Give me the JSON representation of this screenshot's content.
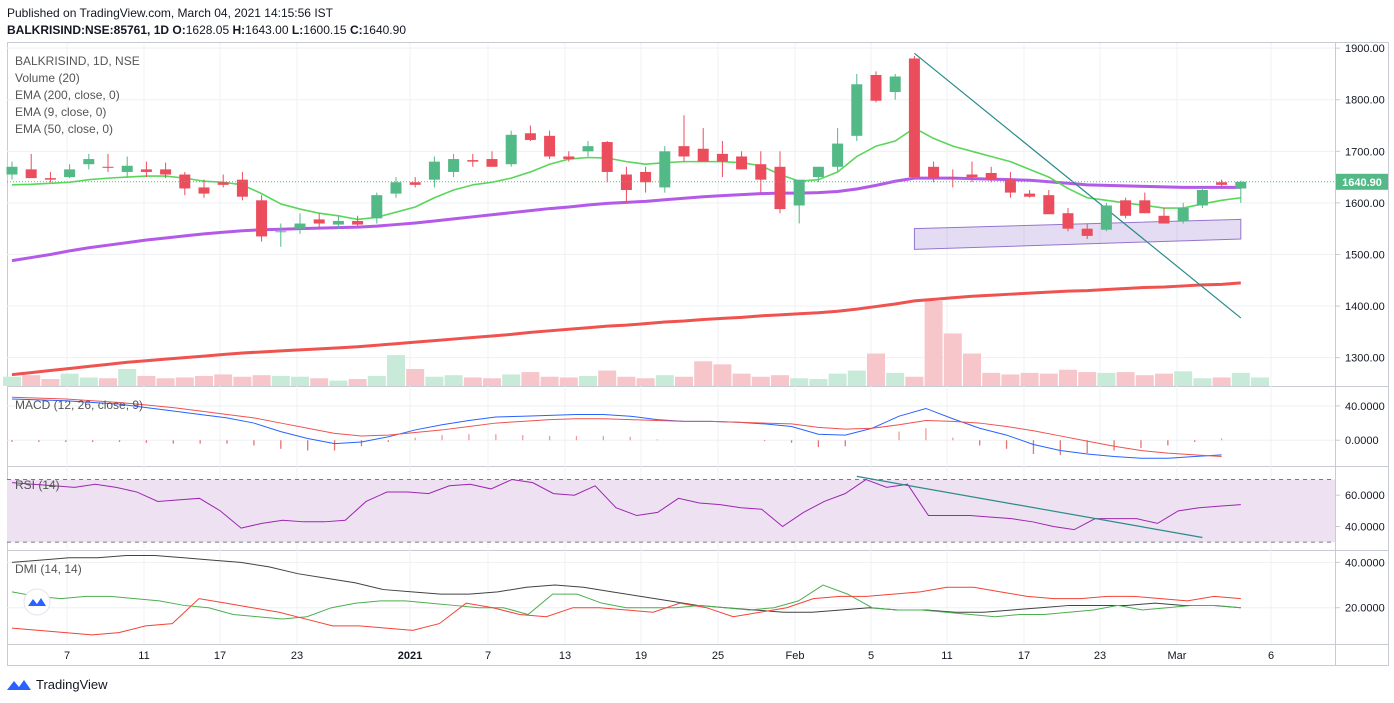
{
  "header": {
    "published": "Published on TradingView.com, March 04, 2021 14:15:56 IST",
    "symbol": "BALKRISIND:NSE:85761, 1D",
    "o_label": "O:",
    "o": "1628.05",
    "h_label": "H:",
    "h": "1643.00",
    "l_label": "L:",
    "l": "1600.15",
    "c_label": "C:",
    "c": "1640.90"
  },
  "legend": [
    "BALKRISIND, 1D, NSE",
    "Volume (20)",
    "EMA (200, close, 0)",
    "EMA (9, close, 0)",
    "EMA (50, close, 0)"
  ],
  "panes": {
    "macd": "MACD (12, 26, close, 9)",
    "rsi": "RSI (14)",
    "dmi": "DMI (14, 14)"
  },
  "footer": {
    "brand": "TradingView"
  },
  "colors": {
    "up": "#53b987",
    "down": "#eb4d5c",
    "ema9": "#5ad65a",
    "ema50": "#b45ae8",
    "ema200": "#ef5350",
    "trend": "#2a8b8b",
    "channel": "#9575cd"
  },
  "chart_data": {
    "type": "candlestick",
    "x_ticks": [
      "7",
      "11",
      "17",
      "23",
      "2021",
      "7",
      "13",
      "19",
      "25",
      "Feb",
      "5",
      "11",
      "17",
      "23",
      "Mar",
      "6"
    ],
    "price": {
      "ylim": [
        1245,
        1910
      ],
      "ticks": [
        "1900.00",
        "1800.00",
        "1700.00",
        "1600.00",
        "1500.00",
        "1400.00",
        "1300.00"
      ],
      "last_price": "1640.90",
      "ohlc": [
        [
          1655,
          1680,
          1645,
          1670
        ],
        [
          1665,
          1695,
          1650,
          1648
        ],
        [
          1648,
          1660,
          1640,
          1645
        ],
        [
          1650,
          1675,
          1648,
          1665
        ],
        [
          1675,
          1695,
          1665,
          1685
        ],
        [
          1670,
          1695,
          1660,
          1668
        ],
        [
          1660,
          1690,
          1650,
          1672
        ],
        [
          1665,
          1680,
          1650,
          1660
        ],
        [
          1665,
          1678,
          1648,
          1655
        ],
        [
          1655,
          1660,
          1615,
          1628
        ],
        [
          1630,
          1645,
          1610,
          1618
        ],
        [
          1640,
          1655,
          1630,
          1635
        ],
        [
          1645,
          1660,
          1605,
          1612
        ],
        [
          1605,
          1615,
          1525,
          1535
        ],
        [
          1545,
          1560,
          1515,
          1545
        ],
        [
          1550,
          1580,
          1540,
          1560
        ],
        [
          1568,
          1580,
          1550,
          1560
        ],
        [
          1558,
          1575,
          1550,
          1565
        ],
        [
          1565,
          1575,
          1555,
          1558
        ],
        [
          1570,
          1620,
          1560,
          1615
        ],
        [
          1618,
          1650,
          1610,
          1640
        ],
        [
          1640,
          1650,
          1630,
          1635
        ],
        [
          1645,
          1690,
          1630,
          1680
        ],
        [
          1660,
          1695,
          1650,
          1685
        ],
        [
          1683,
          1695,
          1670,
          1680
        ],
        [
          1685,
          1700,
          1670,
          1670
        ],
        [
          1675,
          1740,
          1670,
          1732
        ],
        [
          1735,
          1750,
          1720,
          1722
        ],
        [
          1730,
          1740,
          1685,
          1690
        ],
        [
          1690,
          1700,
          1680,
          1685
        ],
        [
          1700,
          1720,
          1690,
          1710
        ],
        [
          1718,
          1720,
          1640,
          1660
        ],
        [
          1655,
          1670,
          1600,
          1625
        ],
        [
          1660,
          1670,
          1620,
          1640
        ],
        [
          1630,
          1710,
          1620,
          1700
        ],
        [
          1710,
          1770,
          1680,
          1690
        ],
        [
          1705,
          1745,
          1680,
          1680
        ],
        [
          1695,
          1720,
          1650,
          1680
        ],
        [
          1690,
          1700,
          1665,
          1665
        ],
        [
          1675,
          1700,
          1620,
          1645
        ],
        [
          1670,
          1700,
          1580,
          1588
        ],
        [
          1595,
          1640,
          1560,
          1645
        ],
        [
          1650,
          1670,
          1640,
          1670
        ],
        [
          1670,
          1745,
          1660,
          1715
        ],
        [
          1730,
          1850,
          1720,
          1830
        ],
        [
          1848,
          1855,
          1795,
          1798
        ],
        [
          1815,
          1850,
          1800,
          1845
        ],
        [
          1880,
          1885,
          1650,
          1650
        ],
        [
          1670,
          1680,
          1640,
          1648
        ],
        [
          1650,
          1665,
          1630,
          1648
        ],
        [
          1655,
          1680,
          1640,
          1650
        ],
        [
          1658,
          1670,
          1640,
          1645
        ],
        [
          1645,
          1660,
          1610,
          1620
        ],
        [
          1618,
          1625,
          1610,
          1612
        ],
        [
          1615,
          1625,
          1580,
          1578
        ],
        [
          1580,
          1590,
          1545,
          1550
        ],
        [
          1550,
          1560,
          1530,
          1536
        ],
        [
          1548,
          1600,
          1545,
          1595
        ],
        [
          1605,
          1610,
          1570,
          1575
        ],
        [
          1605,
          1620,
          1580,
          1580
        ],
        [
          1575,
          1590,
          1560,
          1560
        ],
        [
          1565,
          1600,
          1560,
          1590
        ],
        [
          1595,
          1630,
          1590,
          1625
        ],
        [
          1640,
          1645,
          1630,
          1635
        ],
        [
          1628,
          1643,
          1600,
          1641
        ]
      ],
      "ema9": [
        1635,
        1636,
        1638,
        1640,
        1645,
        1648,
        1650,
        1652,
        1652,
        1648,
        1642,
        1640,
        1635,
        1618,
        1598,
        1588,
        1580,
        1575,
        1568,
        1572,
        1582,
        1592,
        1610,
        1625,
        1635,
        1640,
        1648,
        1660,
        1675,
        1685,
        1688,
        1687,
        1680,
        1675,
        1678,
        1680,
        1680,
        1680,
        1678,
        1672,
        1655,
        1642,
        1645,
        1660,
        1690,
        1710,
        1720,
        1745,
        1725,
        1710,
        1700,
        1690,
        1680,
        1665,
        1650,
        1628,
        1610,
        1605,
        1600,
        1595,
        1590,
        1590,
        1598,
        1605,
        1610
      ],
      "ema50": [
        1488,
        1494,
        1500,
        1507,
        1513,
        1518,
        1523,
        1528,
        1532,
        1536,
        1540,
        1543,
        1546,
        1548,
        1549,
        1550,
        1551,
        1552,
        1553,
        1555,
        1558,
        1561,
        1565,
        1569,
        1573,
        1577,
        1581,
        1585,
        1589,
        1592,
        1596,
        1599,
        1601,
        1603,
        1606,
        1609,
        1612,
        1614,
        1616,
        1618,
        1619,
        1619,
        1620,
        1622,
        1627,
        1634,
        1642,
        1648,
        1648,
        1648,
        1647,
        1646,
        1645,
        1644,
        1641,
        1638,
        1635,
        1634,
        1633,
        1632,
        1631,
        1630,
        1630,
        1630,
        1630
      ],
      "ema200": [
        1267,
        1271,
        1275,
        1279,
        1283,
        1287,
        1291,
        1294,
        1297,
        1300,
        1303,
        1306,
        1309,
        1311,
        1313,
        1315,
        1317,
        1319,
        1321,
        1324,
        1327,
        1330,
        1333,
        1336,
        1339,
        1342,
        1345,
        1349,
        1352,
        1355,
        1358,
        1361,
        1363,
        1366,
        1369,
        1371,
        1374,
        1376,
        1378,
        1381,
        1383,
        1385,
        1387,
        1390,
        1394,
        1399,
        1404,
        1410,
        1413,
        1416,
        1419,
        1421,
        1423,
        1425,
        1427,
        1429,
        1430,
        1432,
        1434,
        1436,
        1437,
        1439,
        1441,
        1442,
        1445
      ],
      "trendline": [
        [
          47,
          1890
        ],
        [
          64,
          1377
        ]
      ],
      "channel": {
        "from": 47,
        "to": 64,
        "lower": [
          1510,
          1530
        ],
        "upper": [
          1550,
          1568
        ]
      }
    },
    "volume": [
      12,
      14,
      9,
      16,
      11,
      10,
      22,
      13,
      10,
      11,
      13,
      15,
      12,
      14,
      13,
      12,
      10,
      7,
      9,
      13,
      40,
      22,
      12,
      14,
      11,
      10,
      15,
      18,
      12,
      11,
      13,
      20,
      12,
      10,
      14,
      12,
      32,
      28,
      16,
      12,
      14,
      10,
      9,
      16,
      20,
      42,
      17,
      12,
      110,
      68,
      42,
      17,
      15,
      17,
      16,
      21,
      18,
      17,
      18,
      14,
      16,
      19,
      10,
      11,
      17,
      11
    ],
    "macd": {
      "ylim": [
        -30,
        62
      ],
      "ticks": [
        "40.0000",
        "0.0000"
      ],
      "macd": [
        48,
        47,
        46,
        44,
        42,
        38,
        34,
        30,
        26,
        20,
        10,
        2,
        -4,
        -2,
        4,
        12,
        18,
        23,
        27,
        28,
        29,
        30,
        30,
        28,
        24,
        22,
        22,
        21,
        19,
        16,
        7,
        6,
        14,
        28,
        37,
        25,
        14,
        6,
        -5,
        -12,
        -16,
        -19,
        -21,
        -21,
        -19,
        -17
      ],
      "signal": [
        50,
        49,
        48,
        46,
        44,
        41,
        38,
        34,
        30,
        26,
        20,
        14,
        8,
        5,
        6,
        9,
        12,
        16,
        20,
        22,
        24,
        25,
        25,
        24,
        23,
        22,
        22,
        21,
        20,
        19,
        15,
        13,
        14,
        18,
        23,
        22,
        20,
        16,
        11,
        5,
        -1,
        -7,
        -12,
        -15,
        -17,
        -19
      ],
      "hist": [
        -2,
        -2,
        -2,
        -2,
        -2,
        -3,
        -4,
        -4,
        -4,
        -6,
        -10,
        -12,
        -12,
        -7,
        -2,
        3,
        6,
        7,
        7,
        6,
        5,
        5,
        5,
        4,
        1,
        0,
        0,
        0,
        -1,
        -3,
        -8,
        -7,
        0,
        10,
        14,
        3,
        -6,
        -10,
        -16,
        -17,
        -15,
        -12,
        -9,
        -6,
        -2,
        2
      ]
    },
    "rsi": {
      "ylim": [
        25,
        78
      ],
      "ticks": [
        "60.0000",
        "40.0000"
      ],
      "values": [
        68,
        67,
        66,
        65,
        67,
        65,
        62,
        56,
        57,
        58,
        50,
        39,
        42,
        44,
        43,
        43,
        44,
        56,
        62,
        62,
        61,
        66,
        67,
        64,
        70,
        68,
        61,
        60,
        66,
        52,
        47,
        49,
        58,
        55,
        54,
        52,
        51,
        40,
        49,
        56,
        61,
        70,
        65,
        67,
        47,
        47,
        47,
        46,
        45,
        43,
        40,
        38,
        45,
        45,
        45,
        42,
        50,
        52,
        53,
        54
      ],
      "trendline": [
        [
          44,
          72
        ],
        [
          62,
          33
        ]
      ]
    },
    "dmi": {
      "ylim": [
        4,
        45
      ],
      "ticks": [
        "40.0000",
        "20.0000"
      ],
      "adx": [
        40,
        41,
        42,
        42,
        43,
        43,
        42,
        41,
        40,
        38,
        35,
        33,
        31,
        28,
        27,
        26,
        26,
        27,
        29,
        30,
        29,
        27,
        25,
        23,
        21,
        20,
        19,
        18,
        18,
        19,
        20,
        19,
        19,
        18,
        18,
        19,
        20,
        21,
        21,
        21,
        22,
        21,
        21,
        20
      ],
      "plus_di": [
        27,
        25,
        24,
        25,
        25,
        24,
        23,
        21,
        20,
        17,
        16,
        15,
        16,
        20,
        22,
        23,
        23,
        22,
        21,
        20,
        20,
        17,
        26,
        26,
        22,
        20,
        20,
        20,
        21,
        20,
        19,
        20,
        23,
        30,
        26,
        20,
        19,
        19,
        18,
        17,
        16,
        17,
        17,
        18,
        19,
        21,
        19,
        20,
        21,
        21,
        20
      ],
      "minus_di": [
        11,
        10,
        9,
        8,
        9,
        12,
        13,
        24,
        22,
        20,
        18,
        15,
        12,
        12,
        11,
        10,
        13,
        22,
        20,
        17,
        16,
        20,
        20,
        19,
        18,
        22,
        20,
        16,
        18,
        20,
        24,
        25,
        25,
        26,
        27,
        29,
        29,
        27,
        25,
        24,
        24,
        25,
        25,
        24,
        23,
        25,
        24
      ]
    }
  }
}
